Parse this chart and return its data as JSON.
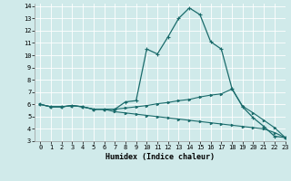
{
  "xlabel": "Humidex (Indice chaleur)",
  "xlim": [
    -0.5,
    23
  ],
  "ylim": [
    3,
    14.2
  ],
  "yticks": [
    3,
    4,
    5,
    6,
    7,
    8,
    9,
    10,
    11,
    12,
    13,
    14
  ],
  "xticks": [
    0,
    1,
    2,
    3,
    4,
    5,
    6,
    7,
    8,
    9,
    10,
    11,
    12,
    13,
    14,
    15,
    16,
    17,
    18,
    19,
    20,
    21,
    22,
    23
  ],
  "background_color": "#d0eaea",
  "grid_color": "#b8d8d8",
  "line_color": "#1a6b6b",
  "line1_y": [
    6.0,
    5.8,
    5.8,
    5.9,
    5.8,
    5.6,
    5.6,
    5.6,
    6.2,
    6.3,
    10.5,
    10.1,
    11.5,
    13.0,
    13.85,
    13.3,
    11.1,
    10.5,
    7.3,
    5.8,
    4.9,
    4.2,
    3.4,
    3.3
  ],
  "line2_y": [
    6.0,
    5.8,
    5.8,
    5.9,
    5.8,
    5.6,
    5.6,
    5.6,
    5.7,
    5.8,
    5.9,
    6.05,
    6.15,
    6.3,
    6.4,
    6.6,
    6.75,
    6.85,
    7.25,
    5.85,
    5.3,
    4.7,
    4.1,
    3.3
  ],
  "line3_y": [
    6.0,
    5.8,
    5.8,
    5.9,
    5.8,
    5.6,
    5.6,
    5.4,
    5.3,
    5.2,
    5.1,
    5.0,
    4.9,
    4.8,
    4.7,
    4.6,
    4.5,
    4.4,
    4.3,
    4.2,
    4.1,
    4.0,
    3.7,
    3.3
  ]
}
